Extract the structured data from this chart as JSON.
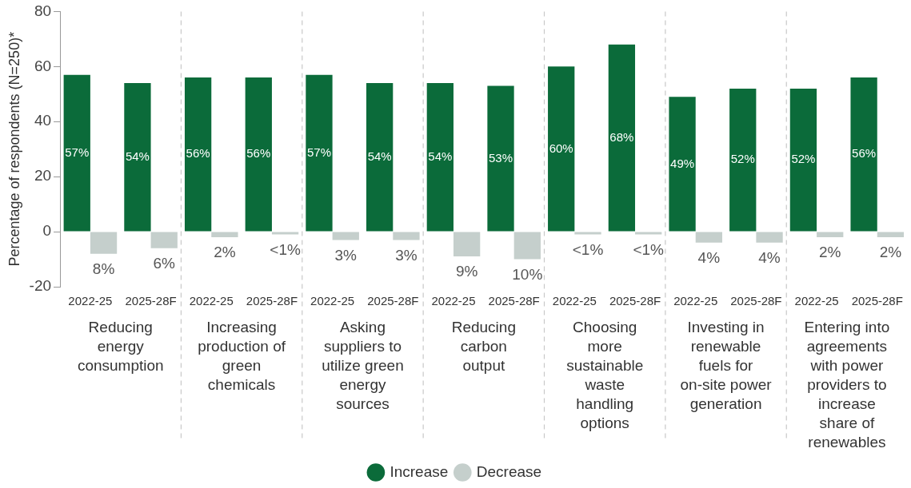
{
  "chart_data": {
    "type": "bar",
    "ylabel": "Percentage of respondents (N=250)*",
    "categories": [
      "2022-25",
      "2025-28F",
      "2022-25",
      "2025-28F",
      "2022-25",
      "2025-28F",
      "2022-25",
      "2025-28F",
      "2022-25",
      "2025-28F",
      "2022-25",
      "2025-28F",
      "2022-25",
      "2025-28F"
    ],
    "series": [
      {
        "name": "Increase",
        "color": "#0b6b3a",
        "values": [
          57,
          54,
          56,
          56,
          57,
          54,
          54,
          53,
          60,
          68,
          49,
          52,
          52,
          56
        ],
        "value_labels": [
          "57%",
          "54%",
          "56%",
          "56%",
          "57%",
          "54%",
          "54%",
          "53%",
          "60%",
          "68%",
          "49%",
          "52%",
          "52%",
          "56%"
        ]
      },
      {
        "name": "Decrease",
        "color": "#c5cfcc",
        "values": [
          8,
          6,
          2,
          1,
          3,
          3,
          9,
          10,
          1,
          1,
          4,
          4,
          2,
          2
        ],
        "base": [
          -8,
          -6,
          -2,
          -1,
          -3,
          -3,
          -9,
          -10,
          -1,
          -1,
          -4,
          -4,
          -2,
          -2
        ],
        "value_labels": [
          "8%",
          "6%",
          "2%",
          "<1%",
          "3%",
          "3%",
          "9%",
          "10%",
          "<1%",
          "<1%",
          "4%",
          "4%",
          "2%",
          "2%"
        ]
      }
    ],
    "annotations": [
      "Reducing energy consumption",
      "Increasing production of green chemicals",
      "Asking suppliers to utilize green energy sources",
      "Reducing carbon output",
      "Choosing more sustainable waste handling options",
      "Investing in renewable fuels for on-site power generation",
      "Entering into agreements with power providers to increase share of renewables"
    ],
    "ylim": [
      -20,
      80
    ],
    "yticks": [
      -20,
      0,
      20,
      40,
      60,
      80
    ],
    "grid": false,
    "legend": "bottom"
  }
}
